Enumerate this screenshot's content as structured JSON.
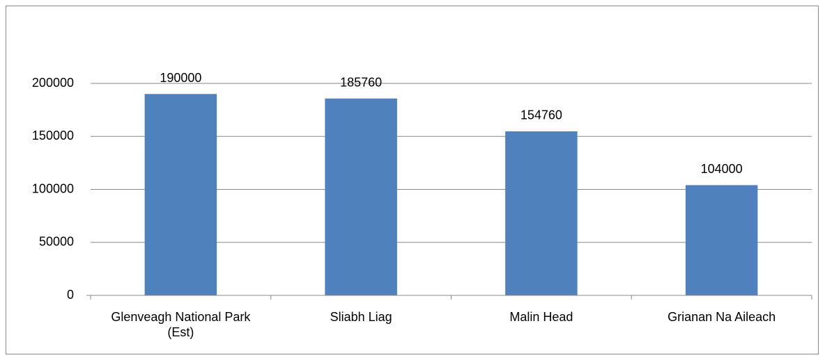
{
  "chart_data": {
    "type": "bar",
    "categories": [
      "Glenveagh National Park (Est)",
      "Sliabh Liag",
      "Malin Head",
      "Grianan Na Aileach"
    ],
    "values": [
      190000,
      185760,
      154760,
      104000
    ],
    "color": "#4f81bd",
    "ylim": [
      0,
      200000
    ],
    "yticks": [
      0,
      50000,
      100000,
      150000,
      200000
    ],
    "grid": true
  }
}
